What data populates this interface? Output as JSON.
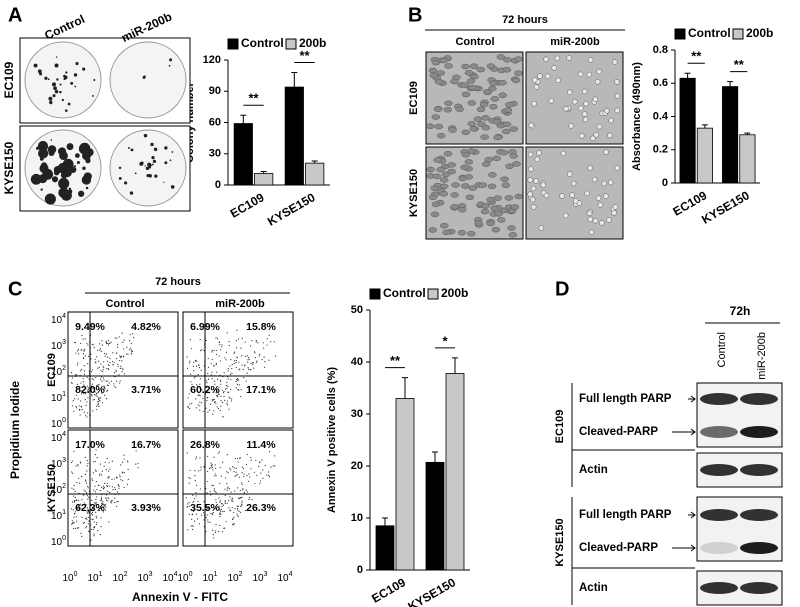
{
  "chart_data": [
    {
      "type": "bar",
      "y_label": "Colony number",
      "categories": [
        "EC109",
        "KYSE150"
      ],
      "series": [
        {
          "name": "Control",
          "color": "#000000",
          "values": [
            59,
            94
          ],
          "errors": [
            8,
            14
          ]
        },
        {
          "name": "200b",
          "color": "#c8c8c8",
          "values": [
            11,
            21
          ],
          "errors": [
            2,
            2
          ]
        }
      ],
      "significance": [
        "**",
        "**"
      ],
      "ylim": [
        0,
        120
      ],
      "yticks": [
        0,
        30,
        60,
        90,
        120
      ]
    },
    {
      "type": "bar",
      "y_label": "Absorbance (490nm)",
      "categories": [
        "EC109",
        "KYSE150"
      ],
      "series": [
        {
          "name": "Control",
          "color": "#000000",
          "values": [
            0.63,
            0.58
          ],
          "errors": [
            0.03,
            0.03
          ]
        },
        {
          "name": "200b",
          "color": "#c8c8c8",
          "values": [
            0.33,
            0.29
          ],
          "errors": [
            0.02,
            0.01
          ]
        }
      ],
      "significance": [
        "**",
        "**"
      ],
      "ylim": [
        0,
        0.8
      ],
      "yticks": [
        0,
        0.2,
        0.4,
        0.6,
        0.8
      ]
    },
    {
      "type": "bar",
      "y_label": "Annexin V positive cells (%)",
      "categories": [
        "EC109",
        "KYSE150"
      ],
      "series": [
        {
          "name": "Control",
          "color": "#000000",
          "values": [
            8.5,
            20.7
          ],
          "errors": [
            1.5,
            2
          ]
        },
        {
          "name": "200b",
          "color": "#c8c8c8",
          "values": [
            33,
            37.8
          ],
          "errors": [
            4,
            3
          ]
        }
      ],
      "significance": [
        "**",
        "*"
      ],
      "ylim": [
        0,
        50
      ],
      "yticks": [
        0,
        10,
        20,
        30,
        40,
        50
      ]
    }
  ],
  "panels": {
    "A": {
      "label": "A",
      "columns": [
        "Control",
        "miR-200b"
      ],
      "rows": [
        "EC109",
        "KYSE150"
      ]
    },
    "B": {
      "label": "B",
      "title": "72 hours",
      "columns": [
        "Control",
        "miR-200b"
      ],
      "rows": [
        "EC109",
        "KYSE150"
      ]
    },
    "C": {
      "label": "C",
      "title": "72 hours",
      "columns": [
        "Control",
        "miR-200b"
      ],
      "rows": [
        "EC109",
        "KYSE150"
      ],
      "y_label": "Propidium Iodide",
      "x_label": "Annexin V - FITC",
      "quadrants": [
        [
          [
            "9.49%",
            "4.82%",
            "82.0%",
            "3.71%"
          ],
          [
            "6.99%",
            "15.8%",
            "60.2%",
            "17.1%"
          ]
        ],
        [
          [
            "17.0%",
            "16.7%",
            "62.3%",
            "3.93%"
          ],
          [
            "26.8%",
            "11.4%",
            "35.5%",
            "26.3%"
          ]
        ]
      ],
      "axis_ticks": [
        {
          "base": "10",
          "exp": "0"
        },
        {
          "base": "10",
          "exp": "1"
        },
        {
          "base": "10",
          "exp": "2"
        },
        {
          "base": "10",
          "exp": "3"
        },
        {
          "base": "10",
          "exp": "4"
        }
      ]
    },
    "D": {
      "label": "D",
      "title": "72h",
      "lanes": [
        "Control",
        "miR-200b"
      ],
      "groups": [
        {
          "name": "EC109",
          "bands": [
            "Full length PARP",
            "Cleaved-PARP",
            "Actin"
          ]
        },
        {
          "name": "KYSE150",
          "bands": [
            "Full length PARP",
            "Cleaved-PARP",
            "Actin"
          ]
        }
      ]
    }
  }
}
